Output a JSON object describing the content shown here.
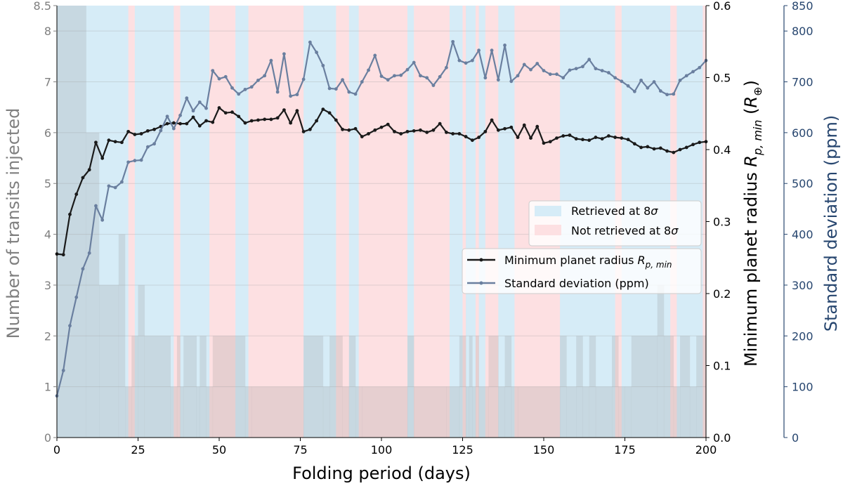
{
  "chart_data": {
    "type": "line",
    "xlabel": "Folding period (days)",
    "x_ticks": [
      "0",
      "25",
      "50",
      "75",
      "100",
      "125",
      "150",
      "175",
      "200"
    ],
    "xlim": [
      0,
      200
    ],
    "left_axis": {
      "label": "Number of transits injected",
      "ylim": [
        0,
        8.5
      ],
      "ticks": [
        "0",
        "1",
        "2",
        "3",
        "4",
        "5",
        "6",
        "7",
        "8",
        "8.5"
      ],
      "color": "#7f7f7f"
    },
    "right_axis_1": {
      "label_prefix": "Minimum planet radius ",
      "label_math": "R",
      "label_sub": "p, min",
      "label_mid": " (",
      "label_unit_sub": "⊕",
      "label_suffix": ")",
      "ylim": [
        0,
        0.6
      ],
      "ticks": [
        "0.0",
        "0.1",
        "0.2",
        "0.3",
        "0.4",
        "0.5",
        "0.6"
      ],
      "color": "#000000"
    },
    "right_axis_2": {
      "label": "Standard deviation (ppm)",
      "ylim": [
        0,
        850
      ],
      "ticks": [
        "0",
        "100",
        "200",
        "300",
        "400",
        "500",
        "600",
        "700",
        "800",
        "850"
      ],
      "color": "#27466f"
    },
    "legend_regions": [
      {
        "label_prefix": "Retrieved at 8",
        "label_symbol": "σ",
        "color": "#d6ecf7"
      },
      {
        "label_prefix": "Not retrieved at 8",
        "label_symbol": "σ",
        "color": "#fde0e2"
      }
    ],
    "legend_lines": [
      {
        "label_prefix": "Minimum planet radius ",
        "label_math": "R",
        "label_sub": "p, min",
        "color": "#1a1a1a"
      },
      {
        "label": "Standard deviation (ppm)",
        "color": "#6a7f9f"
      }
    ],
    "retrieved_intervals": [
      [
        0,
        22
      ],
      [
        24,
        36
      ],
      [
        38,
        47
      ],
      [
        55,
        59
      ],
      [
        76,
        86
      ],
      [
        90,
        93
      ],
      [
        108,
        110
      ],
      [
        121,
        125
      ],
      [
        126,
        129
      ],
      [
        130,
        132
      ],
      [
        136,
        141
      ],
      [
        155,
        172
      ],
      [
        174,
        189
      ],
      [
        191,
        199
      ]
    ],
    "transits_step": {
      "x": [
        0,
        9,
        13,
        19,
        21,
        23,
        25,
        27,
        35,
        37,
        38,
        39,
        43,
        44,
        46,
        48,
        58,
        60,
        76,
        82,
        84,
        88,
        90,
        92,
        94,
        108,
        110,
        120,
        124,
        126,
        127,
        128,
        129,
        130,
        133,
        136,
        138,
        140,
        142,
        155,
        157,
        160,
        162,
        164,
        166,
        171,
        173,
        175,
        177,
        185,
        187,
        190,
        192,
        195,
        197,
        200
      ],
      "values": [
        8.5,
        6,
        3,
        4,
        1,
        2,
        3,
        2,
        1,
        2,
        1,
        2,
        1,
        2,
        1,
        2,
        1,
        1,
        2,
        1,
        2,
        1,
        2,
        1,
        1,
        2,
        1,
        1,
        2,
        1,
        2,
        1,
        2,
        1,
        2,
        1,
        2,
        1,
        1,
        2,
        1,
        2,
        1,
        2,
        1,
        2,
        1,
        1,
        2,
        3,
        2,
        1,
        2,
        1,
        2,
        1
      ]
    },
    "series": [
      {
        "name": "Minimum planet radius R_p,min",
        "axis": "right_axis_1",
        "color": "#1a1a1a",
        "x": [
          0,
          2,
          4,
          6,
          8,
          10,
          12,
          14,
          16,
          18,
          20,
          22,
          24,
          26,
          28,
          30,
          32,
          34,
          36,
          38,
          40,
          42,
          44,
          46,
          48,
          50,
          52,
          54,
          56,
          58,
          60,
          62,
          64,
          66,
          68,
          70,
          72,
          74,
          76,
          78,
          80,
          82,
          84,
          86,
          88,
          90,
          92,
          94,
          96,
          98,
          100,
          102,
          104,
          106,
          108,
          110,
          112,
          114,
          116,
          118,
          120,
          122,
          124,
          126,
          128,
          130,
          132,
          134,
          136,
          138,
          140,
          142,
          144,
          146,
          148,
          150,
          152,
          154,
          156,
          158,
          160,
          162,
          164,
          166,
          168,
          170,
          172,
          174,
          176,
          178,
          180,
          182,
          184,
          186,
          188,
          190,
          192,
          194,
          196,
          198,
          200
        ],
        "values": [
          0.255,
          0.254,
          0.31,
          0.338,
          0.361,
          0.372,
          0.41,
          0.388,
          0.413,
          0.411,
          0.41,
          0.425,
          0.421,
          0.422,
          0.426,
          0.428,
          0.432,
          0.436,
          0.437,
          0.436,
          0.436,
          0.445,
          0.433,
          0.44,
          0.438,
          0.458,
          0.451,
          0.452,
          0.446,
          0.437,
          0.44,
          0.441,
          0.442,
          0.442,
          0.444,
          0.455,
          0.437,
          0.454,
          0.425,
          0.428,
          0.44,
          0.456,
          0.451,
          0.441,
          0.428,
          0.427,
          0.429,
          0.418,
          0.422,
          0.427,
          0.431,
          0.435,
          0.425,
          0.422,
          0.425,
          0.426,
          0.427,
          0.424,
          0.427,
          0.436,
          0.424,
          0.422,
          0.422,
          0.418,
          0.413,
          0.417,
          0.425,
          0.441,
          0.427,
          0.429,
          0.431,
          0.417,
          0.434,
          0.416,
          0.432,
          0.409,
          0.411,
          0.416,
          0.419,
          0.42,
          0.415,
          0.414,
          0.413,
          0.417,
          0.415,
          0.419,
          0.417,
          0.416,
          0.414,
          0.408,
          0.403,
          0.404,
          0.401,
          0.402,
          0.398,
          0.396,
          0.4,
          0.403,
          0.407,
          0.41,
          0.411
        ]
      },
      {
        "name": "Standard deviation (ppm)",
        "axis": "right_axis_2",
        "color": "#6a7f9f",
        "x": [
          0,
          2,
          4,
          6,
          8,
          10,
          12,
          14,
          16,
          18,
          20,
          22,
          24,
          26,
          28,
          30,
          32,
          34,
          36,
          38,
          40,
          42,
          44,
          46,
          48,
          50,
          52,
          54,
          56,
          58,
          60,
          62,
          64,
          66,
          68,
          70,
          72,
          74,
          76,
          78,
          80,
          82,
          84,
          86,
          88,
          90,
          92,
          94,
          96,
          98,
          100,
          102,
          104,
          106,
          108,
          110,
          112,
          114,
          116,
          118,
          120,
          122,
          124,
          126,
          128,
          130,
          132,
          134,
          136,
          138,
          140,
          142,
          144,
          146,
          148,
          150,
          152,
          154,
          156,
          158,
          160,
          162,
          164,
          166,
          168,
          170,
          172,
          174,
          176,
          178,
          180,
          182,
          184,
          186,
          188,
          190,
          192,
          194,
          196,
          198,
          200
        ],
        "values": [
          82,
          132,
          220,
          276,
          332,
          363,
          456,
          428,
          495,
          492,
          503,
          542,
          545,
          546,
          572,
          578,
          604,
          632,
          608,
          634,
          668,
          643,
          660,
          648,
          722,
          706,
          710,
          688,
          676,
          685,
          690,
          703,
          712,
          742,
          680,
          755,
          672,
          675,
          705,
          778,
          758,
          732,
          687,
          686,
          704,
          680,
          676,
          700,
          723,
          752,
          711,
          704,
          712,
          713,
          724,
          738,
          712,
          708,
          693,
          710,
          728,
          779,
          742,
          737,
          742,
          762,
          708,
          762,
          704,
          772,
          701,
          712,
          734,
          724,
          736,
          722,
          715,
          715,
          708,
          723,
          726,
          730,
          744,
          726,
          722,
          718,
          708,
          701,
          692,
          681,
          703,
          688,
          700,
          682,
          675,
          676,
          703,
          712,
          720,
          728,
          742
        ]
      }
    ]
  }
}
